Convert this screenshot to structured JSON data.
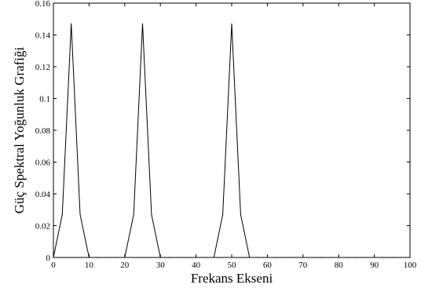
{
  "chart_data": {
    "type": "line",
    "xlabel": "Frekans Ekseni",
    "ylabel": "Güç Spektral Yoğunluk Grafiği",
    "xlim": [
      0,
      100
    ],
    "ylim": [
      0,
      0.16
    ],
    "xticks": [
      0,
      10,
      20,
      30,
      40,
      50,
      60,
      70,
      80,
      90,
      100
    ],
    "yticks": [
      0,
      0.02,
      0.04,
      0.06,
      0.08,
      0.1,
      0.12,
      0.14,
      0.16
    ],
    "xtick_labels": [
      "0",
      "10",
      "20",
      "30",
      "40",
      "50",
      "60",
      "70",
      "80",
      "90",
      "100"
    ],
    "ytick_labels": [
      "0",
      "0.02",
      "0.04",
      "0.06",
      "0.08",
      "0.1",
      "0.12",
      "0.14",
      "0.16"
    ],
    "grid": false,
    "series": [
      {
        "color": "#000000",
        "x": [
          0,
          2.5,
          5,
          7.5,
          10,
          12.5,
          15,
          17.5,
          20,
          22.5,
          25,
          27.5,
          30,
          32.5,
          35,
          37.5,
          40,
          42.5,
          45,
          47.5,
          50,
          52.5,
          55,
          57.5,
          60,
          62.5,
          65,
          67.5,
          70,
          72.5,
          75,
          77.5,
          80,
          82.5,
          85,
          87.5,
          90,
          92.5,
          95,
          97.5,
          100
        ],
        "y": [
          0,
          0.027,
          0.147,
          0.027,
          0,
          0,
          0,
          0,
          0,
          0.027,
          0.147,
          0.027,
          0,
          0,
          0,
          0,
          0,
          0,
          0,
          0.027,
          0.147,
          0.027,
          0,
          0,
          0,
          0,
          0,
          0,
          0,
          0,
          0,
          0,
          0,
          0,
          0,
          0,
          0,
          0,
          0,
          0,
          0
        ]
      }
    ]
  }
}
